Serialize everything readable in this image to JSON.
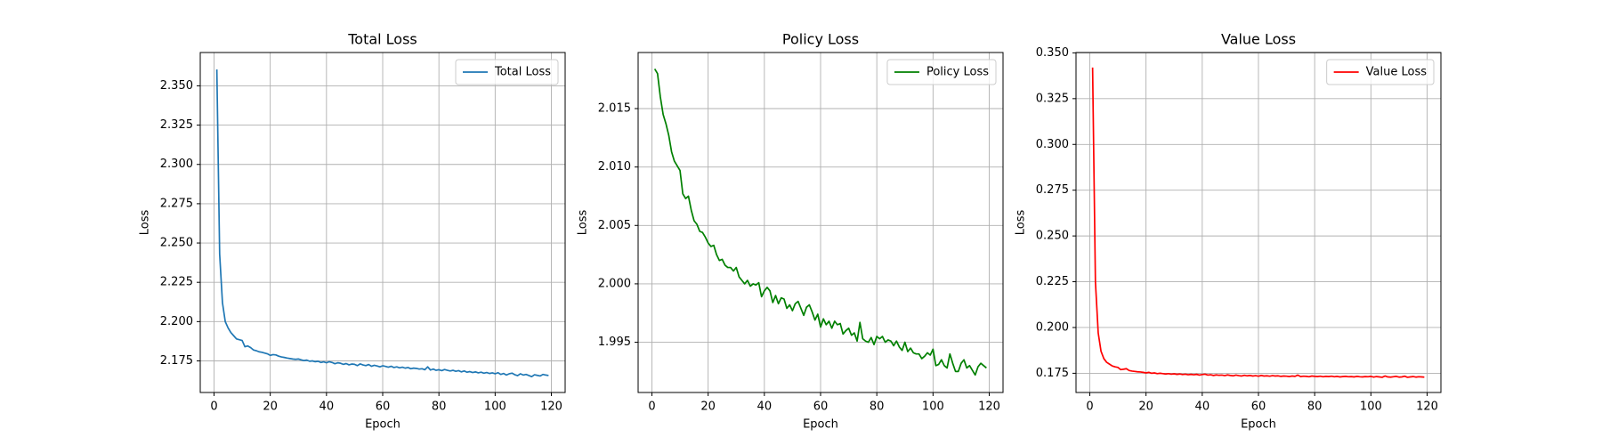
{
  "chart_data": [
    {
      "type": "line",
      "title": "Total Loss",
      "xlabel": "Epoch",
      "ylabel": "Loss",
      "x": [
        1,
        2,
        3,
        4,
        5,
        6,
        7,
        8,
        9,
        10,
        11,
        12,
        13,
        14,
        15,
        16,
        17,
        18,
        19,
        20,
        21,
        22,
        23,
        24,
        25,
        26,
        27,
        28,
        29,
        30,
        31,
        32,
        33,
        34,
        35,
        36,
        37,
        38,
        39,
        40,
        41,
        42,
        43,
        44,
        45,
        46,
        47,
        48,
        49,
        50,
        51,
        52,
        53,
        54,
        55,
        56,
        57,
        58,
        59,
        60,
        61,
        62,
        63,
        64,
        65,
        66,
        67,
        68,
        69,
        70,
        71,
        72,
        73,
        74,
        75,
        76,
        77,
        78,
        79,
        80,
        81,
        82,
        83,
        84,
        85,
        86,
        87,
        88,
        89,
        90,
        91,
        92,
        93,
        94,
        95,
        96,
        97,
        98,
        99,
        100,
        101,
        102,
        103,
        104,
        105,
        106,
        107,
        108,
        109,
        110,
        111,
        112,
        113,
        114,
        115,
        116,
        117,
        118,
        119
      ],
      "series": [
        {
          "name": "Total Loss",
          "color": "#1f77b4",
          "values": [
            2.3604,
            2.243,
            2.212,
            2.2,
            2.196,
            2.193,
            2.191,
            2.189,
            2.1885,
            2.188,
            2.184,
            2.1845,
            2.1835,
            2.182,
            2.1815,
            2.1808,
            2.1805,
            2.18,
            2.1795,
            2.1785,
            2.179,
            2.1788,
            2.178,
            2.1775,
            2.1772,
            2.1768,
            2.1765,
            2.1762,
            2.176,
            2.1762,
            2.1757,
            2.1752,
            2.1755,
            2.1748,
            2.175,
            2.1745,
            2.1748,
            2.174,
            2.1744,
            2.1738,
            2.1745,
            2.174,
            2.1732,
            2.1738,
            2.1735,
            2.1728,
            2.1733,
            2.1725,
            2.173,
            2.1728,
            2.172,
            2.1731,
            2.1724,
            2.172,
            2.1727,
            2.1716,
            2.1722,
            2.1718,
            2.1712,
            2.1719,
            2.1715,
            2.171,
            2.1716,
            2.1708,
            2.1712,
            2.1706,
            2.171,
            2.1704,
            2.1708,
            2.17,
            2.1704,
            2.1702,
            2.1698,
            2.17,
            2.1694,
            2.1712,
            2.1692,
            2.1698,
            2.169,
            2.1694,
            2.1688,
            2.1695,
            2.169,
            2.1686,
            2.169,
            2.1684,
            2.1688,
            2.168,
            2.1686,
            2.1678,
            2.1682,
            2.1676,
            2.168,
            2.1674,
            2.1678,
            2.1672,
            2.1676,
            2.167,
            2.1674,
            2.1668,
            2.1675,
            2.1664,
            2.167,
            2.166,
            2.1668,
            2.1672,
            2.1662,
            2.1656,
            2.1668,
            2.166,
            2.1664,
            2.1657,
            2.165,
            2.1662,
            2.1658,
            2.1654,
            2.1664,
            2.166,
            2.1657
          ]
        }
      ],
      "xlim": [
        -4.9,
        124.9
      ],
      "ylim": [
        2.1549,
        2.3712
      ],
      "xticks": [
        0,
        20,
        40,
        60,
        80,
        100,
        120
      ],
      "yticks": [
        2.175,
        {
          "value": 2.2,
          "label": "2.200"
        },
        2.225,
        {
          "value": 2.25,
          "label": "2.250"
        },
        2.275,
        {
          "value": 2.3,
          "label": "2.300"
        },
        2.325,
        {
          "value": 2.35,
          "label": "2.350"
        }
      ],
      "grid": true,
      "legend": "upper right"
    },
    {
      "type": "line",
      "title": "Policy Loss",
      "xlabel": "Epoch",
      "ylabel": "Loss",
      "x": [
        1,
        2,
        3,
        4,
        5,
        6,
        7,
        8,
        9,
        10,
        11,
        12,
        13,
        14,
        15,
        16,
        17,
        18,
        19,
        20,
        21,
        22,
        23,
        24,
        25,
        26,
        27,
        28,
        29,
        30,
        31,
        32,
        33,
        34,
        35,
        36,
        37,
        38,
        39,
        40,
        41,
        42,
        43,
        44,
        45,
        46,
        47,
        48,
        49,
        50,
        51,
        52,
        53,
        54,
        55,
        56,
        57,
        58,
        59,
        60,
        61,
        62,
        63,
        64,
        65,
        66,
        67,
        68,
        69,
        70,
        71,
        72,
        73,
        74,
        75,
        76,
        77,
        78,
        79,
        80,
        81,
        82,
        83,
        84,
        85,
        86,
        87,
        88,
        89,
        90,
        91,
        92,
        93,
        94,
        95,
        96,
        97,
        98,
        99,
        100,
        101,
        102,
        103,
        104,
        105,
        106,
        107,
        108,
        109,
        110,
        111,
        112,
        113,
        114,
        115,
        116,
        117,
        118,
        119
      ],
      "series": [
        {
          "name": "Policy Loss",
          "color": "#008000",
          "values": [
            2.0184,
            2.018,
            2.016,
            2.0145,
            2.0137,
            2.0127,
            2.0113,
            2.0105,
            2.0101,
            2.0097,
            2.0077,
            2.0073,
            2.0075,
            2.0063,
            2.0054,
            2.0051,
            2.0045,
            2.0044,
            2.004,
            2.0035,
            2.0032,
            2.0033,
            2.0025,
            2.002,
            2.0021,
            2.0016,
            2.0014,
            2.0014,
            2.0011,
            2.0014,
            2.0006,
            2.0003,
            2.0,
            2.0003,
            1.9998,
            2.0,
            1.9999,
            2.0001,
            1.9989,
            1.9994,
            1.9997,
            1.9994,
            1.9984,
            1.999,
            1.9983,
            1.9988,
            1.9987,
            1.9979,
            1.9982,
            1.9977,
            1.9983,
            1.9985,
            1.9979,
            1.9973,
            1.998,
            1.9982,
            1.9976,
            1.9969,
            1.9974,
            1.9963,
            1.997,
            1.9965,
            1.9968,
            1.9962,
            1.9968,
            1.9965,
            1.9966,
            1.9957,
            1.996,
            1.9962,
            1.9956,
            1.9958,
            1.9951,
            1.9967,
            1.9953,
            1.9951,
            1.995,
            1.9954,
            1.9948,
            1.9955,
            1.9953,
            1.9955,
            1.995,
            1.9952,
            1.9951,
            1.9947,
            1.9951,
            1.9946,
            1.9943,
            1.995,
            1.9942,
            1.9945,
            1.9941,
            1.994,
            1.994,
            1.9936,
            1.9938,
            1.9941,
            1.9939,
            1.9944,
            1.993,
            1.9931,
            1.9935,
            1.993,
            1.9928,
            1.994,
            1.9932,
            1.9925,
            1.9925,
            1.9932,
            1.9935,
            1.9928,
            1.993,
            1.9926,
            1.9922,
            1.9929,
            1.9932,
            1.993,
            1.9928
          ]
        }
      ],
      "xlim": [
        -4.9,
        124.9
      ],
      "ylim": [
        1.9907,
        2.0198
      ],
      "xticks": [
        0,
        20,
        40,
        60,
        80,
        100,
        120
      ],
      "yticks": [
        1.995,
        {
          "value": 2,
          "label": "2.000"
        },
        2.005,
        {
          "value": 2.01,
          "label": "2.010"
        },
        2.015
      ],
      "grid": true,
      "legend": "upper right"
    },
    {
      "type": "line",
      "title": "Value Loss",
      "xlabel": "Epoch",
      "ylabel": "Loss",
      "x": [
        1,
        2,
        3,
        4,
        5,
        6,
        7,
        8,
        9,
        10,
        11,
        12,
        13,
        14,
        15,
        16,
        17,
        18,
        19,
        20,
        21,
        22,
        23,
        24,
        25,
        26,
        27,
        28,
        29,
        30,
        31,
        32,
        33,
        34,
        35,
        36,
        37,
        38,
        39,
        40,
        41,
        42,
        43,
        44,
        45,
        46,
        47,
        48,
        49,
        50,
        51,
        52,
        53,
        54,
        55,
        56,
        57,
        58,
        59,
        60,
        61,
        62,
        63,
        64,
        65,
        66,
        67,
        68,
        69,
        70,
        71,
        72,
        73,
        74,
        75,
        76,
        77,
        78,
        79,
        80,
        81,
        82,
        83,
        84,
        85,
        86,
        87,
        88,
        89,
        90,
        91,
        92,
        93,
        94,
        95,
        96,
        97,
        98,
        99,
        100,
        101,
        102,
        103,
        104,
        105,
        106,
        107,
        108,
        109,
        110,
        111,
        112,
        113,
        114,
        115,
        116,
        117,
        118,
        119
      ],
      "series": [
        {
          "name": "Value Loss",
          "color": "#ff0000",
          "values": [
            0.342,
            0.225,
            0.197,
            0.187,
            0.183,
            0.181,
            0.18,
            0.179,
            0.1785,
            0.1782,
            0.177,
            0.1772,
            0.1775,
            0.1765,
            0.1762,
            0.176,
            0.1758,
            0.1757,
            0.1755,
            0.1752,
            0.1755,
            0.175,
            0.1752,
            0.1748,
            0.175,
            0.1748,
            0.1746,
            0.1748,
            0.1745,
            0.1747,
            0.1744,
            0.1746,
            0.1743,
            0.1745,
            0.1742,
            0.1744,
            0.1742,
            0.1744,
            0.174,
            0.1743,
            0.1745,
            0.174,
            0.1742,
            0.1738,
            0.1741,
            0.1739,
            0.174,
            0.1737,
            0.1741,
            0.1738,
            0.1736,
            0.174,
            0.1737,
            0.1735,
            0.1739,
            0.1736,
            0.1738,
            0.1735,
            0.1737,
            0.1734,
            0.1738,
            0.1735,
            0.1736,
            0.1734,
            0.1737,
            0.1735,
            0.1736,
            0.1733,
            0.1735,
            0.1734,
            0.1732,
            0.1735,
            0.1733,
            0.174,
            0.1732,
            0.1734,
            0.1733,
            0.1731,
            0.1735,
            0.1733,
            0.1732,
            0.1734,
            0.1731,
            0.1733,
            0.1732,
            0.1734,
            0.1731,
            0.1733,
            0.173,
            0.1732,
            0.1733,
            0.1731,
            0.1732,
            0.173,
            0.1733,
            0.1731,
            0.173,
            0.1732,
            0.1731,
            0.1733,
            0.1729,
            0.1732,
            0.173,
            0.1728,
            0.1735,
            0.173,
            0.1729,
            0.1731,
            0.1733,
            0.1729,
            0.173,
            0.1734,
            0.1728,
            0.173,
            0.1732,
            0.1729,
            0.1731,
            0.173,
            0.1729
          ]
        }
      ],
      "xlim": [
        -4.9,
        124.9
      ],
      "ylim": [
        0.1645,
        0.3502
      ],
      "xticks": [
        0,
        20,
        40,
        60,
        80,
        100,
        120
      ],
      "yticks": [
        0.175,
        {
          "value": 0.2,
          "label": "0.200"
        },
        0.225,
        {
          "value": 0.25,
          "label": "0.250"
        },
        0.275,
        {
          "value": 0.3,
          "label": "0.300"
        },
        0.325,
        {
          "value": 0.35,
          "label": "0.350"
        }
      ],
      "grid": true,
      "legend": "upper right"
    }
  ]
}
